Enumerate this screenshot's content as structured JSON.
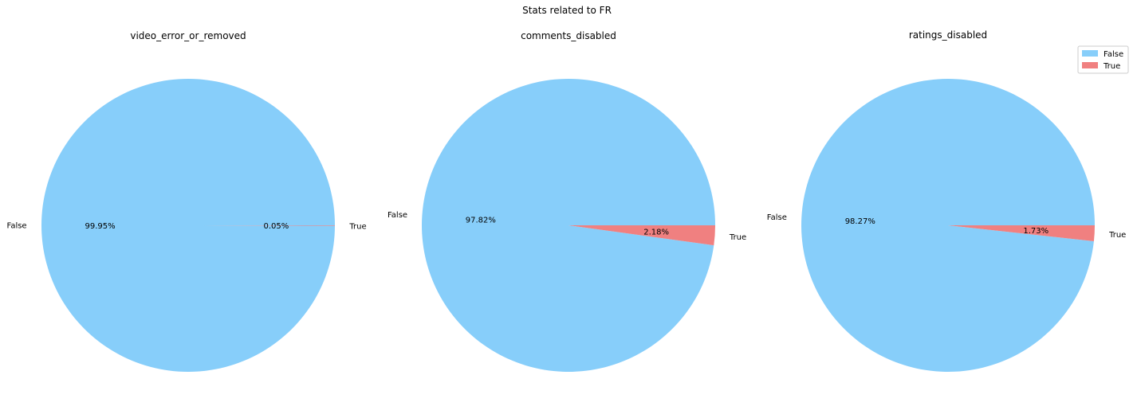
{
  "suptitle": "Stats related to FR",
  "colors": {
    "False": "#87CEFA",
    "True": "#F08080"
  },
  "legend": {
    "placement": "upper-right",
    "entries": [
      "False",
      "True"
    ]
  },
  "chart_data": [
    {
      "type": "pie",
      "title": "video_error_or_removed",
      "labels": [
        "False",
        "True"
      ],
      "values": [
        99.95,
        0.05
      ],
      "autopct": [
        "99.95%",
        "0.05%"
      ]
    },
    {
      "type": "pie",
      "title": "comments_disabled",
      "labels": [
        "False",
        "True"
      ],
      "values": [
        97.82,
        2.18
      ],
      "autopct": [
        "97.82%",
        "2.18%"
      ]
    },
    {
      "type": "pie",
      "title": "ratings_disabled",
      "labels": [
        "False",
        "True"
      ],
      "values": [
        98.27,
        1.73
      ],
      "autopct": [
        "98.27%",
        "1.73%"
      ]
    }
  ]
}
